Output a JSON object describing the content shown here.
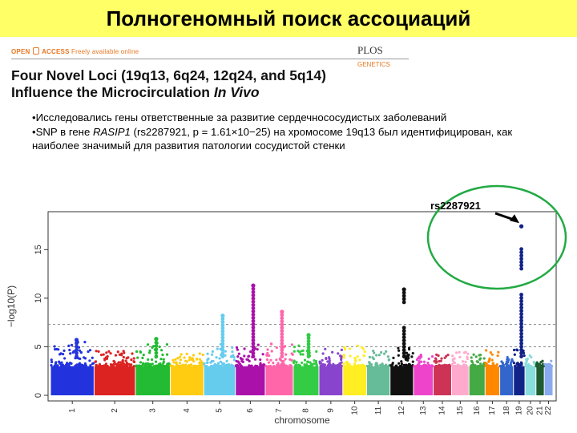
{
  "slide": {
    "title": "Полногеномный поиск ассоциаций"
  },
  "paper": {
    "open_access": "OPEN",
    "access": "ACCESS",
    "freely": "Freely available online",
    "journal": "PLOS",
    "journal_sub": "GENETICS",
    "title_line1": "Four Novel Loci (19q13, 6q24, 12q24, and 5q14)",
    "title_line2_a": "Influence the Microcirculation ",
    "title_line2_b": "In Vivo"
  },
  "bullets": {
    "b1": "•Исследовались гены ответственные за развитие сердечнососудистых заболеваний",
    "b2_a": "•SNP в гене ",
    "b2_gene": "RASIP1",
    "b2_b": " (rs2287921, p = 1.61×10−25) на хромосоме 19q13 был идентифицирован, как наиболее значимый для развития патологии сосудистой стенки"
  },
  "annotation": {
    "snp_label": "rs2287921",
    "circle_color": "#22aa44",
    "arrow_color": "#000000"
  },
  "chart_data": {
    "type": "scatter",
    "title": "",
    "xlabel": "chromosome",
    "ylabel": "−log10(P)",
    "ylim": [
      0,
      18
    ],
    "yticks": [
      0,
      5,
      10,
      15
    ],
    "significance_lines": [
      5,
      7.3
    ],
    "chromosomes": [
      {
        "label": "1",
        "color": "#2233dd",
        "peak": 5.7
      },
      {
        "label": "2",
        "color": "#dd2222",
        "peak": 4.6
      },
      {
        "label": "3",
        "color": "#22bb33",
        "peak": 5.8
      },
      {
        "label": "4",
        "color": "#ffcc11",
        "peak": 4.3
      },
      {
        "label": "5",
        "color": "#66ccee",
        "peak": 8.2
      },
      {
        "label": "6",
        "color": "#aa11aa",
        "peak": 11.3
      },
      {
        "label": "7",
        "color": "#ff66aa",
        "peak": 8.6
      },
      {
        "label": "8",
        "color": "#33cc44",
        "peak": 6.2
      },
      {
        "label": "9",
        "color": "#8844cc",
        "peak": 5.0
      },
      {
        "label": "10",
        "color": "#ffee22",
        "peak": 5.3
      },
      {
        "label": "11",
        "color": "#66bb99",
        "peak": 4.6
      },
      {
        "label": "12",
        "color": "#111111",
        "peak": 10.9
      },
      {
        "label": "13",
        "color": "#ee44cc",
        "peak": 4.5
      },
      {
        "label": "14",
        "color": "#cc3355",
        "peak": 4.2
      },
      {
        "label": "15",
        "color": "#ffaacc",
        "peak": 4.6
      },
      {
        "label": "16",
        "color": "#44aa44",
        "peak": 4.4
      },
      {
        "label": "17",
        "color": "#ff8800",
        "peak": 4.7
      },
      {
        "label": "18",
        "color": "#3366cc",
        "peak": 4.1
      },
      {
        "label": "19",
        "color": "#112288",
        "peak": 17.4
      },
      {
        "label": "20",
        "color": "#88dddd",
        "peak": 4.1
      },
      {
        "label": "21",
        "color": "#1f5c2f",
        "peak": 3.6
      },
      {
        "label": "22",
        "color": "#88aaee",
        "peak": 3.8
      }
    ],
    "highlighted_snp": {
      "label": "rs2287921",
      "chromosome": "19",
      "value": 17.4
    }
  }
}
